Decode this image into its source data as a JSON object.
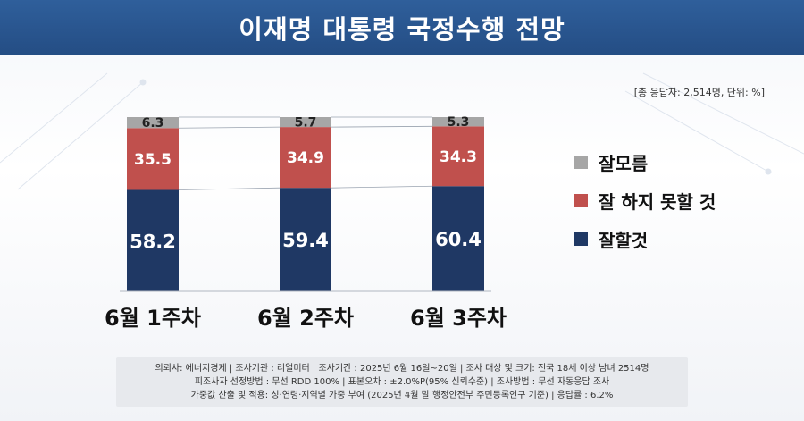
{
  "header": {
    "title": "이재명 대통령 국정수행 전망"
  },
  "meta": {
    "note": "[총 응답자: 2,514명, 단위: %]"
  },
  "legend": [
    {
      "label": "잘모름",
      "color": "#a6a6a6"
    },
    {
      "label": "잘 하지 못할 것",
      "color": "#c0504d"
    },
    {
      "label": "잘할것",
      "color": "#1f3864"
    }
  ],
  "chart_data": {
    "type": "bar",
    "stacked": true,
    "categories": [
      "6월 1주차",
      "6월 2주차",
      "6월 3주차"
    ],
    "series": [
      {
        "name": "잘할것",
        "values": [
          58.2,
          59.4,
          60.4
        ],
        "color": "#1f3864"
      },
      {
        "name": "잘 하지 못할 것",
        "values": [
          35.5,
          34.9,
          34.3
        ],
        "color": "#c0504d"
      },
      {
        "name": "잘모름",
        "values": [
          6.3,
          5.7,
          5.3
        ],
        "color": "#a6a6a6"
      }
    ],
    "ylim": [
      0,
      100
    ],
    "legend_position": "right"
  },
  "footnote": {
    "line1": "의뢰사: 에너지경제 | 조사기관 : 리얼미터  |  조사기간 : 2025년 6월 16일~20일 | 조사 대상 및 크기: 전국 18세 이상 남녀 2514명",
    "line2": "피조사자 선정방법 : 무선 RDD 100% | 표본오차 : ±2.0%P(95% 신뢰수준) | 조사방법 : 무선 자동응답 조사",
    "line3": "가중값 산출 및 적용: 성·연령·지역별 가중 부여 (2025년 4월 말 행정안전부 주민등록인구 기준) | 응답률 : 6.2%"
  }
}
